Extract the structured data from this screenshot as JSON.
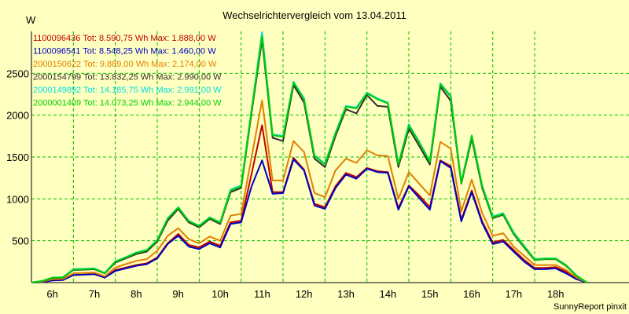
{
  "chart_data": {
    "type": "line",
    "title": "Wechselrichtervergleich vom 13.04.2011",
    "ylabel": "W",
    "credit": "SunnyReport pinxit",
    "ylim": [
      0,
      3000
    ],
    "yticks": [
      500,
      1000,
      1500,
      2000,
      2500
    ],
    "xticks": [
      "6h",
      "7h",
      "8h",
      "9h",
      "10h",
      "11h",
      "12h",
      "13h",
      "14h",
      "15h",
      "16h",
      "17h",
      "18h"
    ],
    "x_start_hour": 5.5,
    "x_end_hour": 19.0,
    "x": [
      5.5,
      5.75,
      6.0,
      6.25,
      6.5,
      6.75,
      7.0,
      7.25,
      7.5,
      7.75,
      8.0,
      8.25,
      8.5,
      8.75,
      9.0,
      9.25,
      9.5,
      9.75,
      10.0,
      10.25,
      10.5,
      10.75,
      11.0,
      11.25,
      11.5,
      11.75,
      12.0,
      12.25,
      12.5,
      12.75,
      13.0,
      13.25,
      13.5,
      13.75,
      14.0,
      14.25,
      14.5,
      14.75,
      15.0,
      15.25,
      15.5,
      15.75,
      16.0,
      16.25,
      16.5,
      16.75,
      17.0,
      17.25,
      17.5,
      17.75,
      18.0,
      18.25,
      18.5,
      18.75
    ],
    "series": [
      {
        "name": "1100096436",
        "legend": "1100096436 Tot: 8.590,75 Wh Max: 1.888,00 W",
        "color": "#c00000",
        "values": [
          0,
          5,
          30,
          35,
          90,
          95,
          100,
          60,
          150,
          180,
          210,
          230,
          300,
          470,
          580,
          450,
          420,
          490,
          440,
          720,
          740,
          1300,
          1880,
          1080,
          1080,
          1490,
          1350,
          940,
          900,
          1150,
          1310,
          1260,
          1370,
          1330,
          1320,
          890,
          1160,
          1040,
          900,
          1460,
          1390,
          750,
          1100,
          730,
          480,
          510,
          390,
          270,
          175,
          175,
          185,
          130,
          50,
          0
        ]
      },
      {
        "name": "1100096541",
        "legend": "1100096541 Tot: 8.548,25 Wh Max: 1.460,00 W",
        "color": "#0000c0",
        "values": [
          0,
          5,
          25,
          30,
          90,
          95,
          100,
          60,
          140,
          170,
          200,
          220,
          290,
          460,
          560,
          430,
          400,
          470,
          420,
          700,
          720,
          1150,
          1460,
          1060,
          1070,
          1470,
          1340,
          920,
          880,
          1130,
          1290,
          1240,
          1360,
          1320,
          1310,
          870,
          1150,
          1010,
          870,
          1450,
          1370,
          730,
          1080,
          710,
          460,
          490,
          370,
          250,
          160,
          160,
          170,
          110,
          40,
          0
        ]
      },
      {
        "name": "2000150622",
        "legend": "2000150622 Tot: 9.889,00 Wh Max: 2.174,00 W",
        "color": "#e08000",
        "values": [
          0,
          10,
          40,
          45,
          110,
          115,
          120,
          75,
          180,
          220,
          260,
          280,
          380,
          560,
          650,
          520,
          470,
          550,
          500,
          800,
          820,
          1500,
          2174,
          1220,
          1220,
          1690,
          1560,
          1070,
          1020,
          1340,
          1480,
          1430,
          1580,
          1520,
          1510,
          1000,
          1320,
          1180,
          1040,
          1680,
          1600,
          850,
          1230,
          830,
          560,
          590,
          430,
          320,
          210,
          210,
          210,
          150,
          60,
          0
        ]
      },
      {
        "name": "2000154799",
        "legend": "2000154799 Tot: 13.832,25 Wh Max: 2.990,00 W",
        "color": "#303030",
        "values": [
          0,
          15,
          55,
          60,
          150,
          155,
          160,
          110,
          240,
          290,
          340,
          370,
          490,
          740,
          880,
          720,
          660,
          760,
          700,
          1080,
          1130,
          2030,
          2900,
          1730,
          1690,
          2360,
          2150,
          1480,
          1380,
          1750,
          2070,
          2020,
          2240,
          2110,
          2100,
          1380,
          1840,
          1630,
          1410,
          2340,
          2170,
          1180,
          1720,
          1130,
          770,
          810,
          580,
          420,
          270,
          280,
          280,
          200,
          80,
          0
        ]
      },
      {
        "name": "2000149892",
        "legend": "2000149892 Tot: 14.185,75 Wh Max: 2.991,00 W",
        "color": "#00e0e0",
        "values": [
          0,
          20,
          60,
          65,
          160,
          165,
          170,
          115,
          255,
          305,
          360,
          390,
          510,
          770,
          900,
          740,
          680,
          780,
          720,
          1110,
          1160,
          2070,
          2991,
          1770,
          1750,
          2400,
          2200,
          1520,
          1420,
          1790,
          2110,
          2090,
          2270,
          2200,
          2150,
          1420,
          1890,
          1680,
          1450,
          2380,
          2230,
          1200,
          1760,
          1160,
          790,
          830,
          600,
          440,
          280,
          290,
          290,
          210,
          85,
          0
        ]
      },
      {
        "name": "2000001409",
        "legend": "2000001409 Tot: 14.073,25 Wh Max: 2.944,00 W",
        "color": "#00d000",
        "values": [
          0,
          18,
          58,
          62,
          155,
          160,
          165,
          112,
          250,
          300,
          355,
          385,
          505,
          765,
          895,
          735,
          675,
          775,
          715,
          1100,
          1150,
          2060,
          2944,
          1760,
          1740,
          2390,
          2190,
          1510,
          1410,
          1780,
          2100,
          2080,
          2260,
          2190,
          2140,
          1410,
          1880,
          1670,
          1440,
          2370,
          2220,
          1190,
          1750,
          1150,
          780,
          820,
          590,
          430,
          275,
          285,
          285,
          205,
          82,
          0
        ]
      }
    ]
  }
}
